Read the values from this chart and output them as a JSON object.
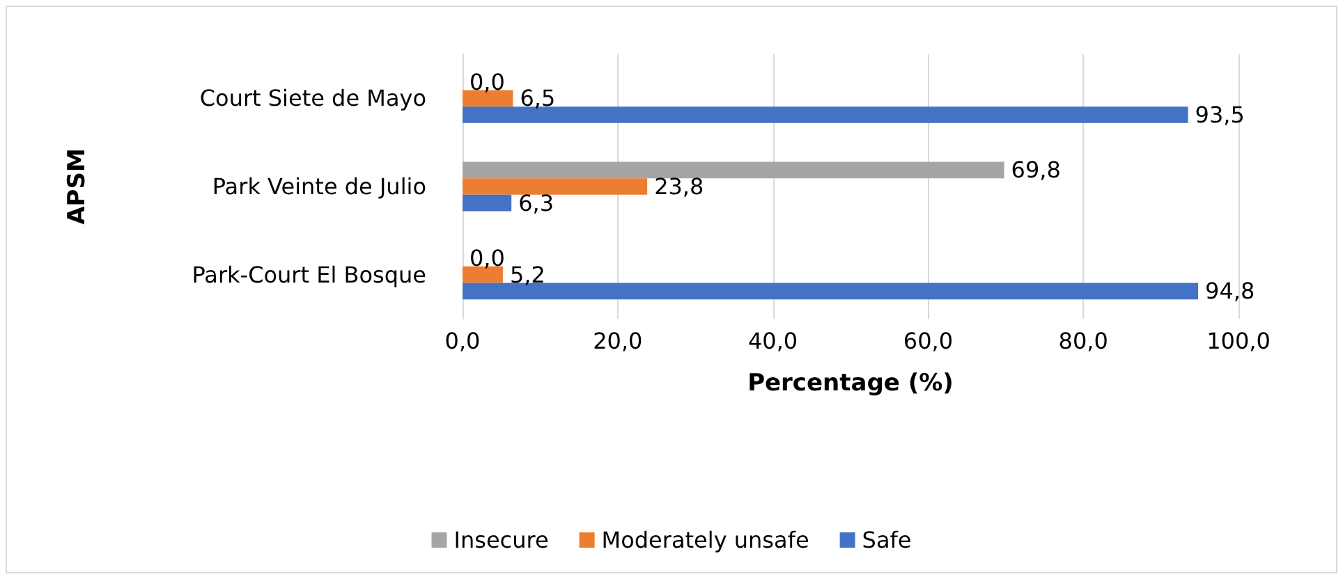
{
  "chart_data": {
    "type": "bar",
    "orientation": "horizontal",
    "ylabel": "APSM",
    "xlabel": "Percentage (%)",
    "categories": [
      "Court Siete de Mayo",
      "Park Veinte de Julio",
      "Park-Court El Bosque"
    ],
    "series": [
      {
        "name": "Insecure",
        "color": "#a5a5a5",
        "values": [
          0.0,
          69.8,
          0.0
        ],
        "value_labels": [
          "0,0",
          "69,8",
          "0,0"
        ]
      },
      {
        "name": "Moderately unsafe",
        "color": "#ed7d31",
        "values": [
          6.5,
          23.8,
          5.2
        ],
        "value_labels": [
          "6,5",
          "23,8",
          "5,2"
        ]
      },
      {
        "name": "Safe",
        "color": "#4472c4",
        "values": [
          93.5,
          6.3,
          94.8
        ],
        "value_labels": [
          "93,5",
          "6,3",
          "94,8"
        ]
      }
    ],
    "xlim": [
      0,
      100
    ],
    "xticks": [
      {
        "value": 0,
        "label": "0,0"
      },
      {
        "value": 20,
        "label": "20,0"
      },
      {
        "value": 40,
        "label": "40,0"
      },
      {
        "value": 60,
        "label": "60,0"
      },
      {
        "value": 80,
        "label": "80,0"
      },
      {
        "value": 100,
        "label": "100,0"
      }
    ],
    "grid": "x",
    "legend": "bottom"
  }
}
